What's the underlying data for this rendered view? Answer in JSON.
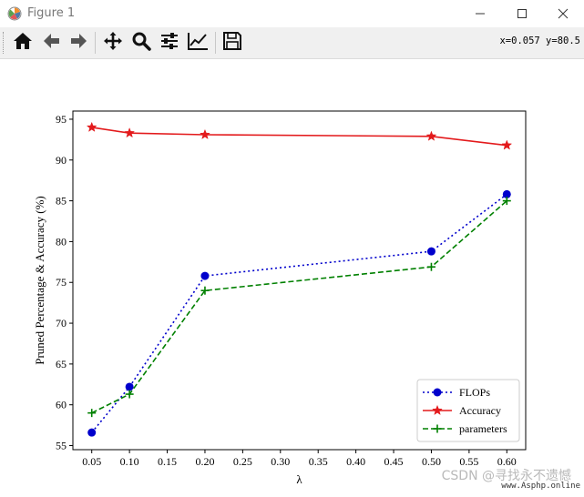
{
  "window": {
    "title": "Figure 1",
    "controls": [
      "minimize-icon",
      "maximize-icon",
      "close-icon"
    ]
  },
  "toolbar": {
    "buttons": [
      "home-icon",
      "back-arrow-icon",
      "forward-arrow-icon",
      "pan-icon",
      "zoom-icon",
      "subplots-config-icon",
      "edit-axes-icon",
      "save-icon"
    ],
    "coord_readout": "x=0.057 y=80.5"
  },
  "chart_data": {
    "type": "line",
    "x": [
      0.05,
      0.1,
      0.2,
      0.5,
      0.6
    ],
    "series": [
      {
        "name": "FLOPs",
        "values": [
          56.6,
          62.2,
          75.8,
          78.8,
          85.8
        ],
        "color": "#0000cc",
        "marker": "circle",
        "linestyle": "dotted"
      },
      {
        "name": "Accuracy",
        "values": [
          94.0,
          93.3,
          93.1,
          92.9,
          91.8
        ],
        "color": "#e31a1c",
        "marker": "star",
        "linestyle": "solid"
      },
      {
        "name": "parameters",
        "values": [
          59.0,
          61.3,
          74.0,
          76.9,
          85.0
        ],
        "color": "#008000",
        "marker": "plus",
        "linestyle": "dashed"
      }
    ],
    "xlabel": "λ",
    "ylabel": "Pruned Percentage & Accuracy (%)",
    "xlim": [
      0.025,
      0.625
    ],
    "ylim": [
      54.5,
      96.0
    ],
    "xticks": [
      "0.05",
      "0.10",
      "0.15",
      "0.20",
      "0.25",
      "0.30",
      "0.35",
      "0.40",
      "0.45",
      "0.50",
      "0.55",
      "0.60"
    ],
    "yticks": [
      "55",
      "60",
      "65",
      "70",
      "75",
      "80",
      "85",
      "90",
      "95"
    ],
    "legend_position": "lower-right",
    "grid": false
  },
  "watermark": {
    "text": "CSDN @寻找永不遗憾",
    "site": "www.Asphp.online"
  }
}
